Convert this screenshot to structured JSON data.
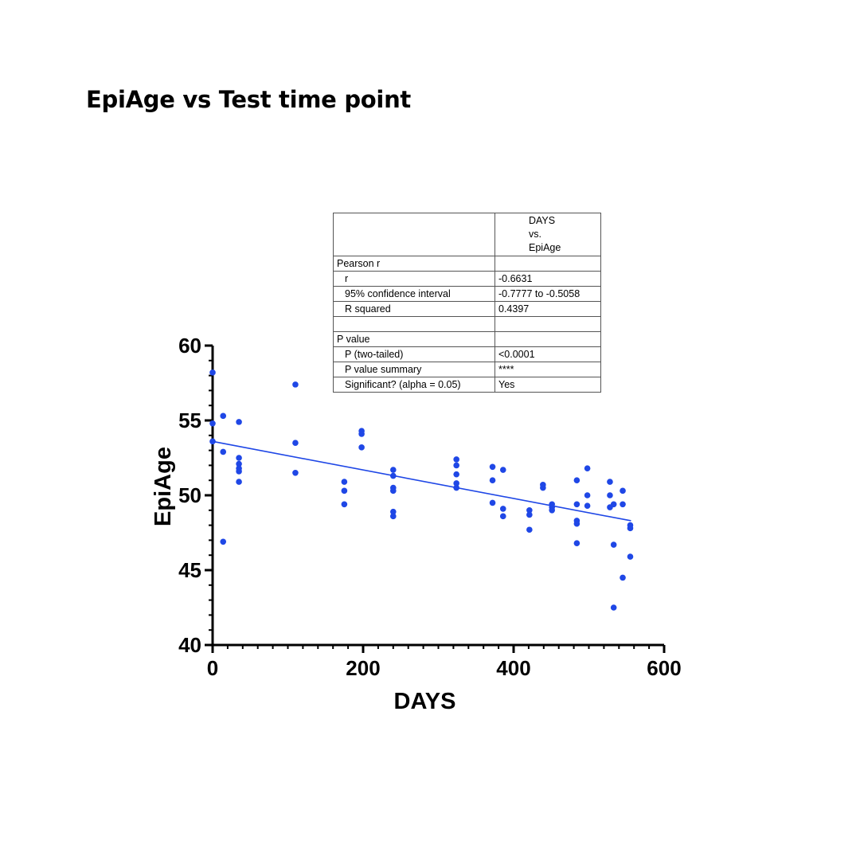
{
  "page": {
    "title": "EpiAge vs Test time point"
  },
  "stats_table": {
    "header": [
      "DAYS",
      "vs.",
      "EpiAge"
    ],
    "rows": [
      {
        "label": "Pearson r",
        "value": "",
        "indent": false
      },
      {
        "label": "r",
        "value": "-0.6631",
        "indent": true
      },
      {
        "label": "95% confidence interval",
        "value": "-0.7777 to -0.5058",
        "indent": true
      },
      {
        "label": "R squared",
        "value": "0.4397",
        "indent": true
      },
      {
        "label": "",
        "value": "",
        "indent": false
      },
      {
        "label": "P value",
        "value": "",
        "indent": false
      },
      {
        "label": "P (two-tailed)",
        "value": "<0.0001",
        "indent": true
      },
      {
        "label": "P value summary",
        "value": "****",
        "indent": true
      },
      {
        "label": "Significant? (alpha = 0.05)",
        "value": "Yes",
        "indent": true
      }
    ]
  },
  "chart_data": {
    "type": "scatter",
    "xlabel": "DAYS",
    "ylabel": "EpiAge",
    "xlim": [
      0,
      600
    ],
    "ylim": [
      40,
      60
    ],
    "x_ticks": [
      0,
      200,
      400,
      600
    ],
    "y_ticks": [
      40,
      45,
      50,
      55,
      60
    ],
    "grid": false,
    "point_color": "#1f47e6",
    "regression_line": {
      "x": [
        0,
        556
      ],
      "y": [
        53.6,
        48.3
      ]
    },
    "points": [
      {
        "x": 0,
        "y": 58.2
      },
      {
        "x": 0,
        "y": 54.8
      },
      {
        "x": 0,
        "y": 53.6
      },
      {
        "x": 14,
        "y": 55.3
      },
      {
        "x": 14,
        "y": 52.9
      },
      {
        "x": 14,
        "y": 46.9
      },
      {
        "x": 35,
        "y": 54.9
      },
      {
        "x": 35,
        "y": 52.5
      },
      {
        "x": 35,
        "y": 52.1
      },
      {
        "x": 35,
        "y": 51.8
      },
      {
        "x": 35,
        "y": 51.6
      },
      {
        "x": 35,
        "y": 50.9
      },
      {
        "x": 110,
        "y": 57.4
      },
      {
        "x": 110,
        "y": 53.5
      },
      {
        "x": 110,
        "y": 51.5
      },
      {
        "x": 175,
        "y": 50.9
      },
      {
        "x": 175,
        "y": 50.3
      },
      {
        "x": 175,
        "y": 49.4
      },
      {
        "x": 198,
        "y": 54.3
      },
      {
        "x": 198,
        "y": 54.1
      },
      {
        "x": 198,
        "y": 53.2
      },
      {
        "x": 240,
        "y": 51.7
      },
      {
        "x": 240,
        "y": 51.3
      },
      {
        "x": 240,
        "y": 50.5
      },
      {
        "x": 240,
        "y": 50.3
      },
      {
        "x": 240,
        "y": 48.9
      },
      {
        "x": 240,
        "y": 48.6
      },
      {
        "x": 324,
        "y": 52.4
      },
      {
        "x": 324,
        "y": 52.0
      },
      {
        "x": 324,
        "y": 51.4
      },
      {
        "x": 324,
        "y": 50.8
      },
      {
        "x": 324,
        "y": 50.5
      },
      {
        "x": 372,
        "y": 51.9
      },
      {
        "x": 372,
        "y": 51.0
      },
      {
        "x": 372,
        "y": 49.5
      },
      {
        "x": 386,
        "y": 51.7
      },
      {
        "x": 386,
        "y": 49.1
      },
      {
        "x": 386,
        "y": 48.6
      },
      {
        "x": 421,
        "y": 49.0
      },
      {
        "x": 421,
        "y": 48.7
      },
      {
        "x": 421,
        "y": 47.7
      },
      {
        "x": 439,
        "y": 50.7
      },
      {
        "x": 439,
        "y": 50.5
      },
      {
        "x": 451,
        "y": 49.4
      },
      {
        "x": 451,
        "y": 49.2
      },
      {
        "x": 451,
        "y": 49.0
      },
      {
        "x": 484,
        "y": 51.0
      },
      {
        "x": 484,
        "y": 49.4
      },
      {
        "x": 484,
        "y": 48.3
      },
      {
        "x": 484,
        "y": 48.1
      },
      {
        "x": 484,
        "y": 46.8
      },
      {
        "x": 498,
        "y": 51.8
      },
      {
        "x": 498,
        "y": 50.0
      },
      {
        "x": 498,
        "y": 49.3
      },
      {
        "x": 528,
        "y": 50.9
      },
      {
        "x": 528,
        "y": 50.0
      },
      {
        "x": 528,
        "y": 49.2
      },
      {
        "x": 533,
        "y": 49.4
      },
      {
        "x": 533,
        "y": 46.7
      },
      {
        "x": 533,
        "y": 42.5
      },
      {
        "x": 545,
        "y": 50.3
      },
      {
        "x": 545,
        "y": 49.4
      },
      {
        "x": 545,
        "y": 44.5
      },
      {
        "x": 555,
        "y": 48.0
      },
      {
        "x": 555,
        "y": 47.8
      },
      {
        "x": 555,
        "y": 45.9
      }
    ]
  }
}
